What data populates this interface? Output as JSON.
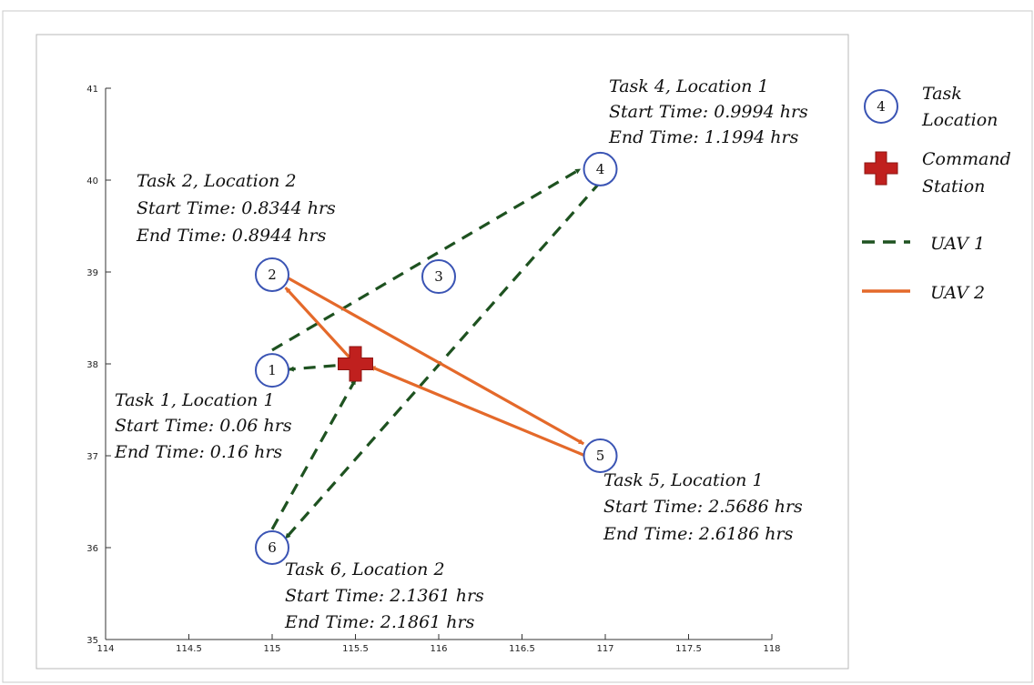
{
  "chart_data": {
    "type": "scatter",
    "xlim": [
      114,
      118
    ],
    "ylim": [
      35,
      41
    ],
    "x_ticks": [
      "114",
      "114.5",
      "115",
      "115.5",
      "116",
      "116.5",
      "117",
      "117.5",
      "118"
    ],
    "y_ticks": [
      "35",
      "36",
      "37",
      "38",
      "39",
      "40",
      "41"
    ],
    "grid": false,
    "command_station": {
      "x": 115.5,
      "y": 38.0
    },
    "locations": [
      {
        "label": "1",
        "x": 115.0,
        "y": 37.93
      },
      {
        "label": "2",
        "x": 115.0,
        "y": 38.97
      },
      {
        "label": "3",
        "x": 116.0,
        "y": 38.95
      },
      {
        "label": "4",
        "x": 116.97,
        "y": 40.12
      },
      {
        "label": "5",
        "x": 116.97,
        "y": 37.0
      },
      {
        "label": "6",
        "x": 115.0,
        "y": 36.0
      }
    ],
    "routes": [
      {
        "name": "UAV 1",
        "color": "#1e5220",
        "style": "dashed",
        "legs": [
          {
            "from": [
              115.5,
              38.0
            ],
            "to": [
              115.1,
              37.94
            ]
          },
          {
            "from": [
              115.0,
              38.15
            ],
            "to": [
              116.85,
              40.12
            ]
          },
          {
            "from": [
              116.97,
              39.98
            ],
            "to": [
              115.08,
              36.1
            ]
          },
          {
            "from": [
              115.0,
              36.2
            ],
            "to": [
              115.5,
              37.83
            ]
          }
        ]
      },
      {
        "name": "UAV 2",
        "color": "#e4692a",
        "style": "solid",
        "legs": [
          {
            "from": [
              115.5,
              38.0
            ],
            "to": [
              115.08,
              38.83
            ]
          },
          {
            "from": [
              115.05,
              38.98
            ],
            "to": [
              116.87,
              37.13
            ]
          },
          {
            "from": [
              116.88,
              37.0
            ],
            "to": [
              115.59,
              37.97
            ]
          }
        ]
      }
    ],
    "annotations": [
      {
        "lines": [
          "Task 4, Location 1",
          "Start Time: 0.9994 hrs",
          "End Time: 1.1994 hrs"
        ]
      },
      {
        "lines": [
          "Task 2, Location 2",
          "Start Time: 0.8344 hrs",
          "End Time: 0.8944 hrs"
        ]
      },
      {
        "lines": [
          "Task 1, Location 1",
          "Start Time: 0.06 hrs",
          "End Time: 0.16 hrs"
        ]
      },
      {
        "lines": [
          "Task 5, Location 1",
          "Start Time: 2.5686 hrs",
          "End Time: 2.6186 hrs"
        ]
      },
      {
        "lines": [
          "Task 6, Location 2",
          "Start Time: 2.1361 hrs",
          "End Time: 2.1861 hrs"
        ]
      }
    ],
    "legend": {
      "placement": "right",
      "entries": [
        {
          "kind": "task-location",
          "icon_label": "4",
          "lines": [
            "Task",
            "Location"
          ]
        },
        {
          "kind": "command-station",
          "lines": [
            "Command",
            "Station"
          ]
        },
        {
          "kind": "uav1",
          "lines": [
            "UAV 1"
          ]
        },
        {
          "kind": "uav2",
          "lines": [
            "UAV 2"
          ]
        }
      ]
    },
    "colors": {
      "uav1": "#1e5220",
      "uav2": "#e4692a",
      "node_stroke": "#3a54b4",
      "command_station": "#c0201e"
    }
  }
}
